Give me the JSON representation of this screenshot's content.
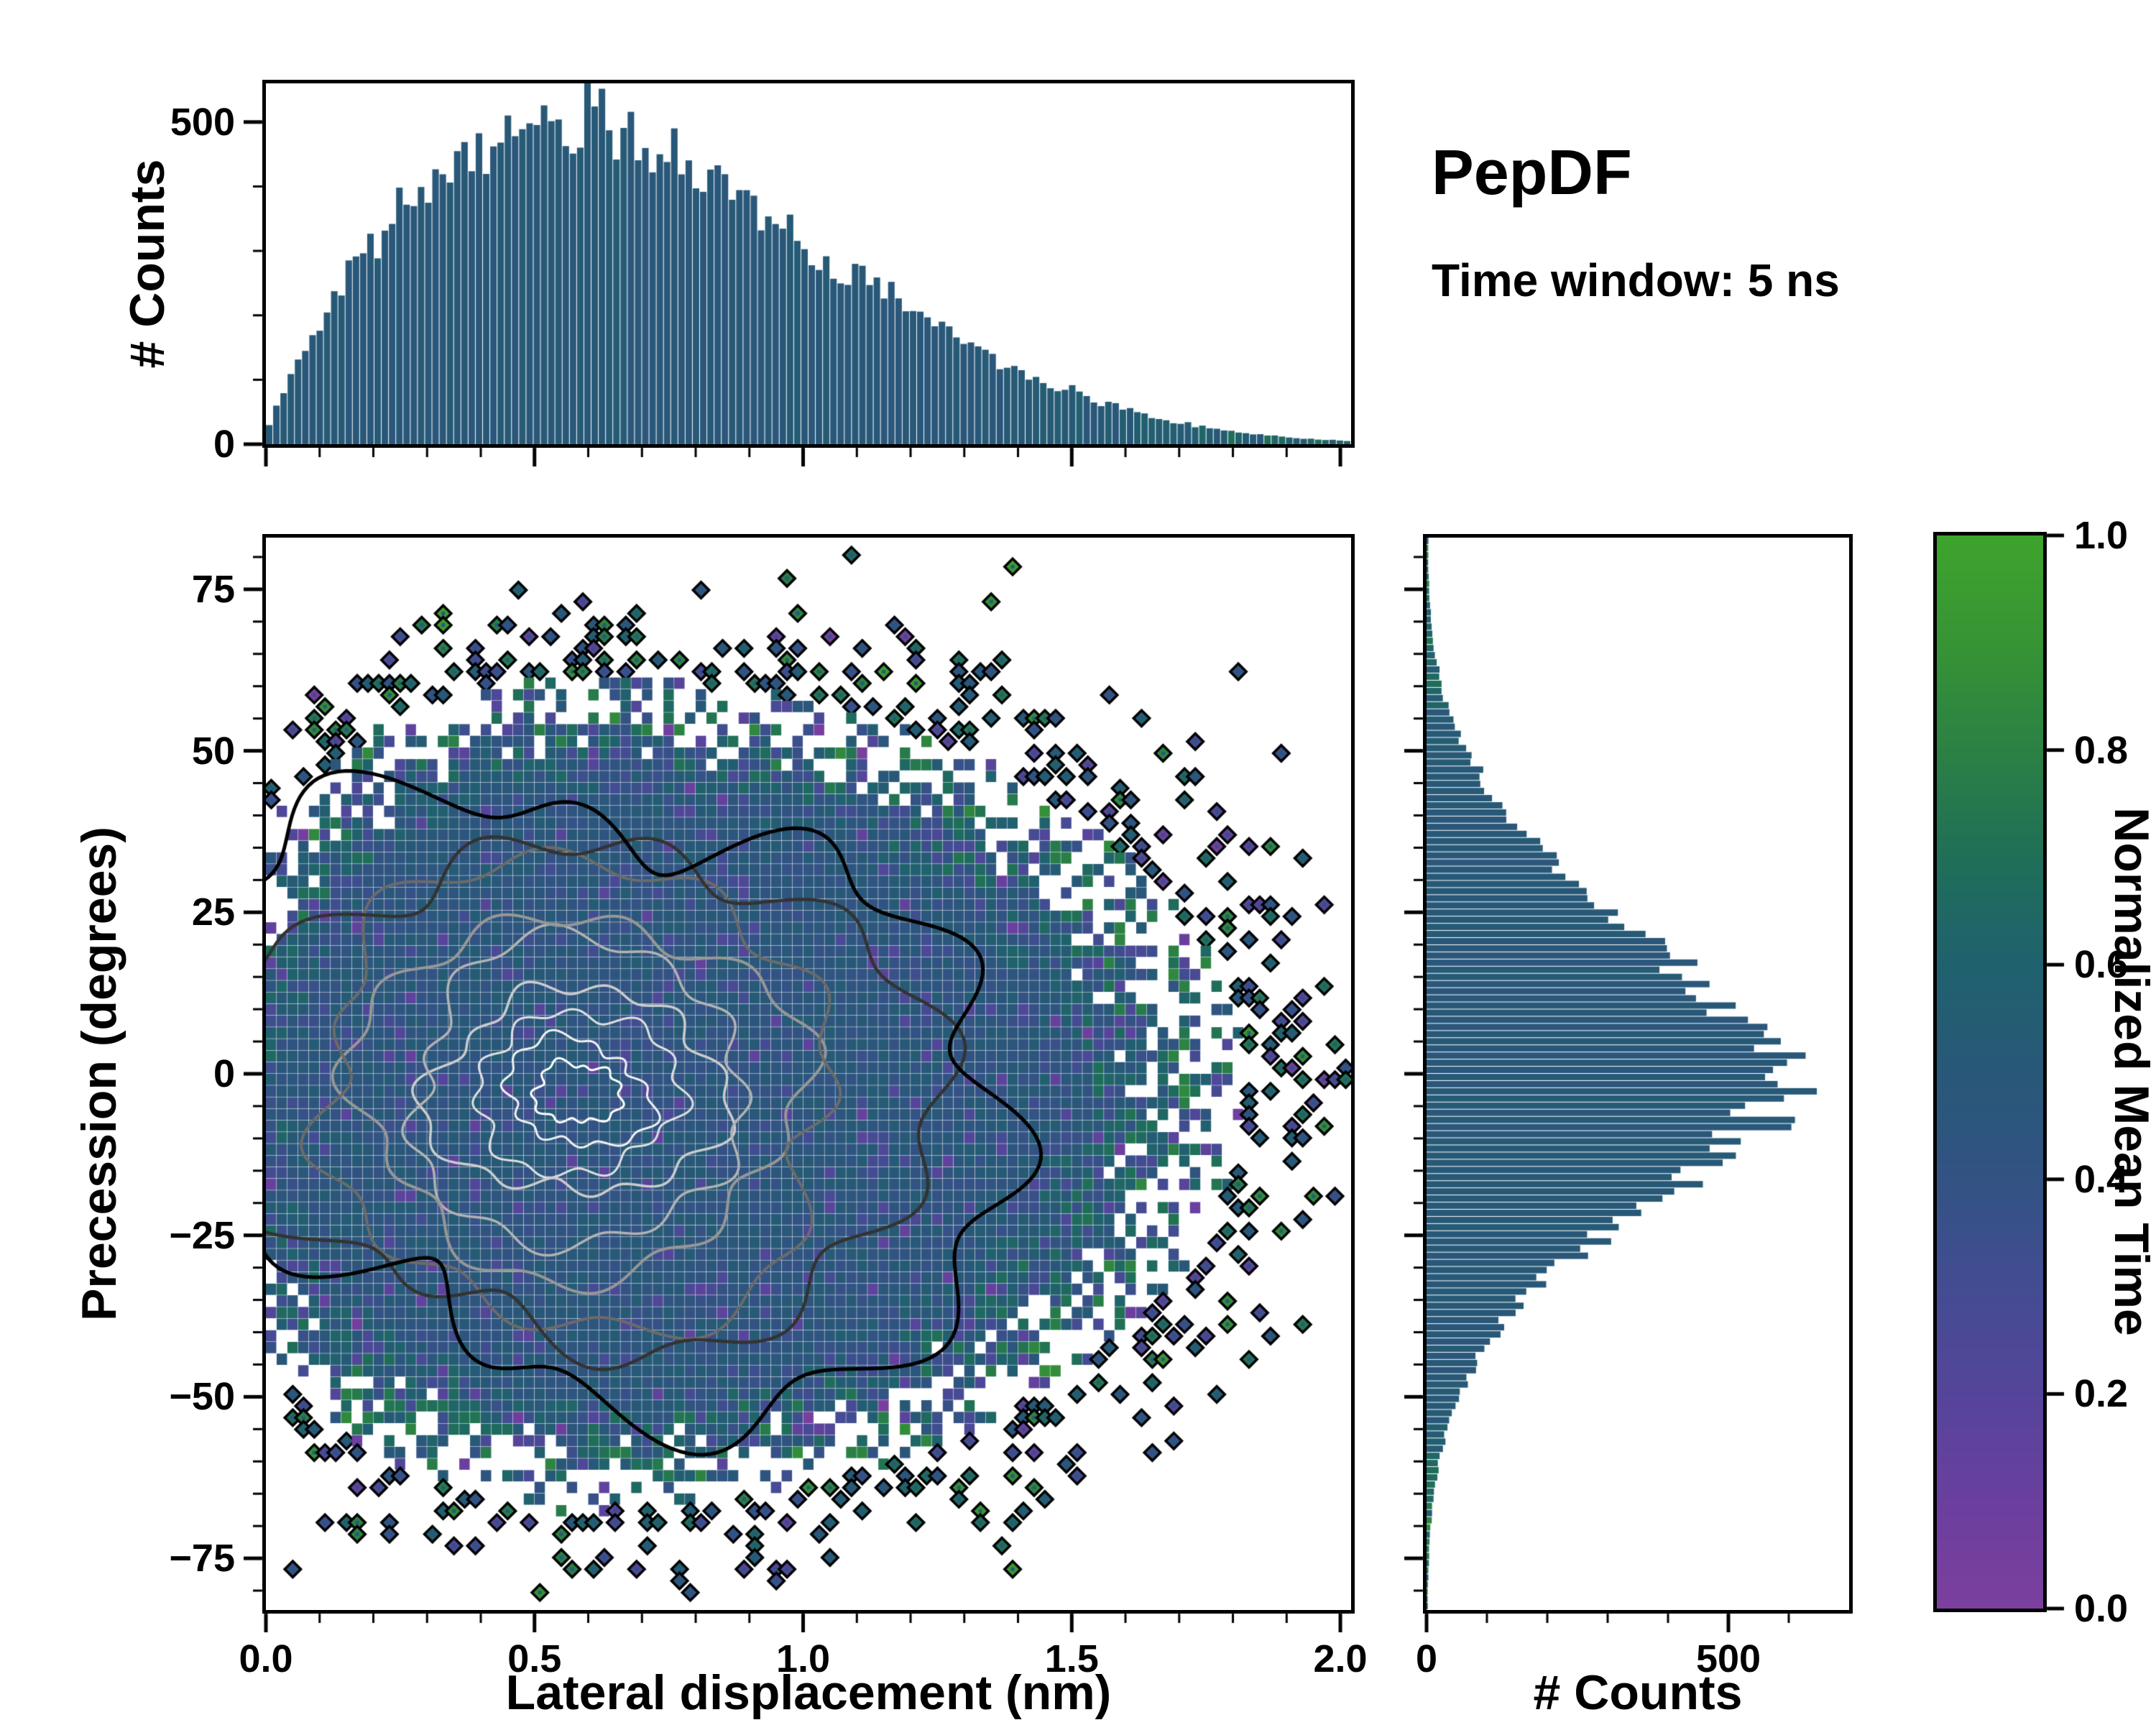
{
  "annotations": {
    "title": "PepDF",
    "subtitle": "Time window: 5 ns"
  },
  "chart_data": [
    {
      "id": "top_marginal_histogram",
      "type": "bar",
      "orientation": "vertical",
      "ylabel": "# Counts",
      "ylim": [
        0,
        560
      ],
      "ytick_values": [
        0,
        500
      ],
      "ytick_labels": [
        "0",
        "500"
      ],
      "xlim": [
        0,
        2.02
      ],
      "bins": 150,
      "seed": 11,
      "envelope_x": [
        0,
        0.03,
        0.07,
        0.12,
        0.17,
        0.22,
        0.28,
        0.34,
        0.4,
        0.46,
        0.52,
        0.58,
        0.64,
        0.7,
        0.76,
        0.82,
        0.88,
        0.95,
        1.02,
        1.1,
        1.18,
        1.26,
        1.35,
        1.45,
        1.55,
        1.65,
        1.75,
        1.85,
        1.95,
        2.02
      ],
      "envelope_counts": [
        15,
        80,
        150,
        215,
        280,
        330,
        375,
        415,
        450,
        470,
        485,
        492,
        488,
        470,
        448,
        420,
        385,
        340,
        300,
        258,
        215,
        175,
        135,
        98,
        66,
        42,
        26,
        15,
        8,
        5
      ]
    },
    {
      "id": "joint_2d_histogram",
      "type": "heatmap",
      "xlabel": "Lateral displacement (nm)",
      "ylabel": "Precession (degrees)",
      "color_by": "Normalized Mean Time",
      "xlim": [
        0,
        2.02
      ],
      "ylim": [
        -83,
        83
      ],
      "xtick_values": [
        0,
        0.5,
        1.0,
        1.5,
        2.0
      ],
      "xtick_labels": [
        "0.0",
        "0.5",
        "1.0",
        "1.5",
        "2.0"
      ],
      "ytick_values": [
        75,
        50,
        25,
        0,
        -25,
        -50,
        -75
      ],
      "ytick_labels": [
        "75",
        "50",
        "25",
        "0",
        "−25",
        "−50",
        "−75"
      ],
      "grid": {
        "nx": 101,
        "ny": 92
      },
      "seed": 33,
      "density": {
        "x_mode": 0.58,
        "x_sigma_left": 0.3,
        "x_sigma_right": 0.5,
        "y_mean": -3,
        "y_sigma": 26
      },
      "mean_time": {
        "core": 0.46,
        "core_noise": 0.08
      },
      "contours": {
        "center": [
          0.58,
          -3
        ],
        "semi_axes": [
          0.76,
          49.5
        ],
        "levels": [
          [
            0.1,
            "#ffffff",
            3.0,
            0.22
          ],
          [
            0.17,
            "#f2f2f2",
            3.0,
            0.2
          ],
          [
            0.25,
            "#e0e0e0",
            3.0,
            0.19
          ],
          [
            0.34,
            "#cccccc",
            3.5,
            0.18
          ],
          [
            0.44,
            "#b3b3b3",
            3.5,
            0.17
          ],
          [
            0.55,
            "#979797",
            4.0,
            0.16
          ],
          [
            0.68,
            "#6b6b6b",
            4.0,
            0.17
          ],
          [
            0.83,
            "#333333",
            4.5,
            0.18
          ],
          [
            1.0,
            "#000000",
            5.0,
            0.23
          ]
        ]
      }
    },
    {
      "id": "right_marginal_histogram",
      "type": "bar",
      "orientation": "horizontal",
      "xlabel": "# Counts",
      "xlim": [
        0,
        700
      ],
      "xtick_values": [
        0,
        500
      ],
      "xtick_labels": [
        "0",
        "500"
      ],
      "ylim": [
        -83,
        83
      ],
      "bins": 150,
      "seed": 22,
      "envelope_y": [
        -80,
        -72,
        -65,
        -58,
        -52,
        -46,
        -40,
        -35,
        -30,
        -25,
        -20,
        -16,
        -12,
        -8,
        -4,
        -1,
        2,
        6,
        10,
        14,
        18,
        23,
        28,
        34,
        40,
        46,
        52,
        58,
        65,
        72,
        78
      ],
      "envelope_counts": [
        2,
        5,
        12,
        25,
        45,
        75,
        115,
        165,
        225,
        295,
        370,
        430,
        490,
        545,
        600,
        625,
        610,
        570,
        515,
        455,
        395,
        325,
        255,
        190,
        135,
        90,
        55,
        30,
        14,
        6,
        3
      ]
    },
    {
      "id": "colorbar",
      "type": "colorbar",
      "label": "Normalized Mean Time",
      "range": [
        0,
        1
      ],
      "tick_values": [
        0.0,
        0.2,
        0.4,
        0.6,
        0.8,
        1.0
      ],
      "tick_labels": [
        "0.0",
        "0.2",
        "0.4",
        "0.6",
        "0.8",
        "1.0"
      ],
      "colormap_stops": [
        [
          0.0,
          "#7c3f9e"
        ],
        [
          0.1,
          "#6a3f9e"
        ],
        [
          0.2,
          "#55459a"
        ],
        [
          0.3,
          "#434c92"
        ],
        [
          0.4,
          "#325383"
        ],
        [
          0.5,
          "#285878"
        ],
        [
          0.6,
          "#20616e"
        ],
        [
          0.7,
          "#1f6f58"
        ],
        [
          0.8,
          "#2b8144"
        ],
        [
          0.9,
          "#379435"
        ],
        [
          1.0,
          "#3ea42c"
        ]
      ]
    }
  ]
}
